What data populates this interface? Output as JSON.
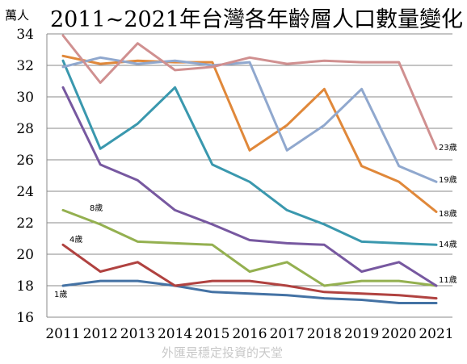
{
  "chart_data": {
    "type": "line",
    "title": "2011~2021年台灣各年齡層人口數量變化",
    "ylabel": "萬人",
    "xlabel": "",
    "watermark": "外匯是穩定投資的天堂",
    "ylim": [
      16,
      34
    ],
    "ytick_values": [
      16,
      18,
      20,
      22,
      24,
      26,
      28,
      30,
      32,
      34
    ],
    "ytick_labels": [
      "16",
      "18",
      "20",
      "22",
      "24",
      "26",
      "28",
      "30",
      "32",
      "34"
    ],
    "categories": [
      "2011",
      "2012",
      "2013",
      "2014",
      "2015",
      "2016",
      "2017",
      "2018",
      "2019",
      "2020",
      "2021"
    ],
    "grid": true,
    "series": [
      {
        "name": "1歲",
        "color": "#4472a4",
        "values": [
          18.0,
          18.3,
          18.3,
          18.0,
          17.6,
          17.5,
          17.4,
          17.2,
          17.1,
          16.9,
          16.9
        ]
      },
      {
        "name": "4歲",
        "color": "#b04240",
        "values": [
          20.6,
          18.9,
          19.5,
          18.0,
          18.3,
          18.3,
          18.0,
          17.6,
          17.5,
          17.4,
          17.2
        ]
      },
      {
        "name": "8歲",
        "color": "#94b050",
        "values": [
          22.8,
          21.9,
          20.8,
          20.7,
          20.6,
          18.9,
          19.5,
          18.0,
          18.3,
          18.3,
          18.0
        ]
      },
      {
        "name": "11歲",
        "color": "#7758a0",
        "values": [
          30.6,
          25.7,
          24.7,
          22.8,
          21.9,
          20.9,
          20.7,
          20.6,
          18.9,
          19.5,
          18.0
        ]
      },
      {
        "name": "14歲",
        "color": "#3a98ae",
        "values": [
          32.3,
          26.7,
          28.3,
          30.6,
          25.7,
          24.6,
          22.8,
          21.9,
          20.8,
          20.7,
          20.6
        ]
      },
      {
        "name": "18歲",
        "color": "#e0883a",
        "values": [
          32.6,
          32.1,
          32.3,
          32.2,
          32.2,
          26.6,
          28.2,
          30.5,
          25.6,
          24.6,
          22.7
        ]
      },
      {
        "name": "19歲",
        "color": "#90a8ce",
        "values": [
          31.9,
          32.5,
          32.1,
          32.3,
          32.0,
          32.2,
          26.6,
          28.2,
          30.5,
          25.6,
          24.6
        ]
      },
      {
        "name": "23歲",
        "color": "#d09090",
        "values": [
          33.9,
          30.9,
          33.4,
          31.7,
          31.9,
          32.5,
          32.1,
          32.3,
          32.2,
          32.2,
          26.7
        ]
      }
    ]
  }
}
